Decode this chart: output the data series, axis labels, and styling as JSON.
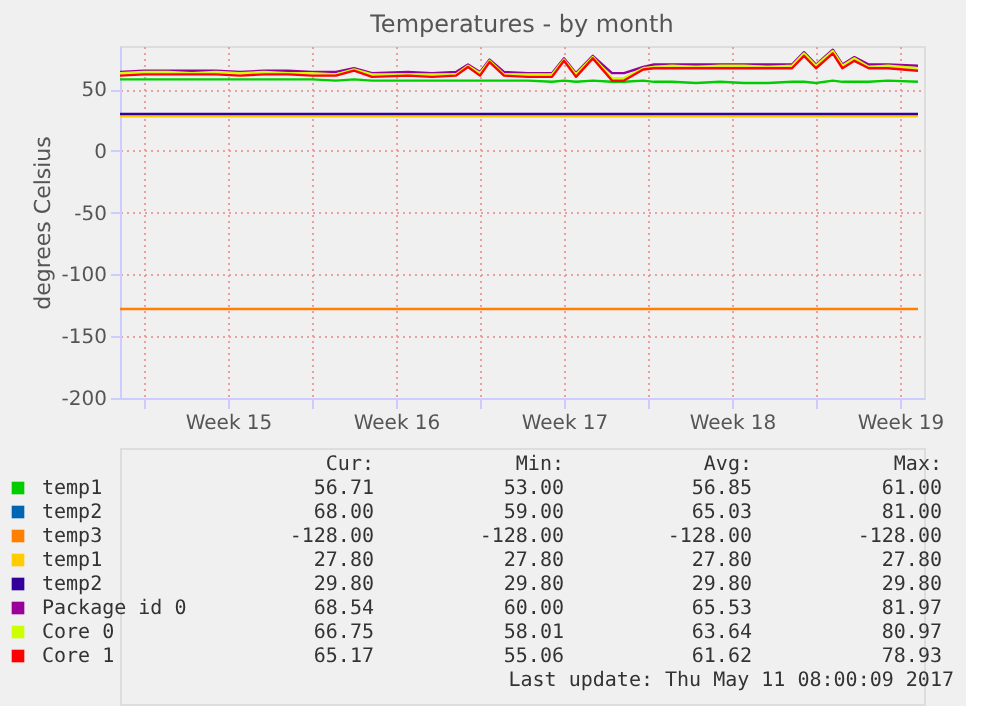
{
  "chart_data": {
    "type": "line",
    "title": "Temperatures - by month",
    "ylabel": "degrees Celsius",
    "x": [
      "2017-04-09T00:00",
      "2017-04-10T00:00",
      "2017-04-11T00:00",
      "2017-04-12T00:00",
      "2017-04-13T00:00",
      "2017-04-14T00:00",
      "2017-04-15T00:00",
      "2017-04-16T00:00",
      "2017-04-17T00:00",
      "2017-04-18T00:00",
      "2017-04-18T18:00",
      "2017-04-19T12:00",
      "2017-04-21T00:00",
      "2017-04-22T00:00",
      "2017-04-23T00:00",
      "2017-04-23T12:00",
      "2017-04-24T00:00",
      "2017-04-24T09:36",
      "2017-04-25T00:00",
      "2017-04-26T00:00",
      "2017-04-27T00:00",
      "2017-04-27T12:00",
      "2017-04-28T00:00",
      "2017-04-28T16:48",
      "2017-04-29T12:00",
      "2017-04-30T00:00",
      "2017-04-30T19:12",
      "2017-05-01T06:00",
      "2017-05-02T00:00",
      "2017-05-03T00:00",
      "2017-05-04T00:00",
      "2017-05-05T00:00",
      "2017-05-06T00:00",
      "2017-05-07T00:00",
      "2017-05-07T12:00",
      "2017-05-08T00:00",
      "2017-05-08T16:48",
      "2017-05-09T02:24",
      "2017-05-09T14:24",
      "2017-05-10T04:48",
      "2017-05-11T00:00",
      "2017-05-12T06:00"
    ],
    "series": [
      {
        "name": "temp1",
        "color": "#00cc00",
        "values": [
          58,
          58,
          58,
          58,
          58,
          58,
          58,
          58,
          58,
          57,
          58,
          57,
          57,
          57,
          57,
          57,
          57,
          57,
          57,
          57,
          56,
          57,
          56,
          57,
          56,
          56,
          57,
          56,
          56,
          55,
          56,
          55,
          55,
          56,
          56,
          55,
          57,
          56,
          56,
          56,
          57,
          56
        ]
      },
      {
        "name": "temp2",
        "color": "#0066b3",
        "values": [
          null,
          null,
          null,
          null,
          null,
          null,
          null,
          null,
          null,
          null,
          null,
          null,
          null,
          null,
          null,
          null,
          null,
          null,
          null,
          null,
          null,
          null,
          null,
          null,
          null,
          null,
          null,
          null,
          null,
          null,
          null,
          null,
          null,
          null,
          null,
          null,
          null,
          null,
          null,
          null,
          null,
          null
        ]
      },
      {
        "name": "temp3",
        "color": "#ff8000",
        "values": [
          -128,
          -128,
          -128,
          -128,
          -128,
          -128,
          -128,
          -128,
          -128,
          -128,
          -128,
          -128,
          -128,
          -128,
          -128,
          -128,
          -128,
          -128,
          -128,
          -128,
          -128,
          -128,
          -128,
          -128,
          -128,
          -128,
          -128,
          -128,
          -128,
          -128,
          -128,
          -128,
          -128,
          -128,
          -128,
          -128,
          -128,
          -128,
          -128,
          -128,
          -128,
          -128
        ]
      },
      {
        "name": "temp1",
        "color": "#ffcc00",
        "values": [
          28,
          28,
          28,
          28,
          28,
          28,
          28,
          28,
          28,
          28,
          28,
          28,
          28,
          28,
          28,
          28,
          28,
          28,
          28,
          28,
          28,
          28,
          28,
          28,
          28,
          28,
          28,
          28,
          28,
          28,
          28,
          28,
          28,
          28,
          28,
          28,
          28,
          28,
          28,
          28,
          28,
          28
        ]
      },
      {
        "name": "temp2",
        "color": "#330099",
        "values": [
          30,
          30,
          30,
          30,
          30,
          30,
          30,
          30,
          30,
          30,
          30,
          30,
          30,
          30,
          30,
          30,
          30,
          30,
          30,
          30,
          30,
          30,
          30,
          30,
          30,
          30,
          30,
          30,
          30,
          30,
          30,
          30,
          30,
          30,
          30,
          30,
          30,
          30,
          30,
          30,
          30,
          30
        ]
      },
      {
        "name": "Package id 0",
        "color": "#990099",
        "values": [
          64,
          65,
          65,
          65,
          65,
          64,
          65,
          65,
          64,
          64,
          67,
          63,
          64,
          63,
          64,
          70,
          64,
          74,
          64,
          63,
          63,
          75,
          63,
          77,
          63,
          63,
          68,
          70,
          70,
          70,
          70,
          70,
          70,
          70,
          80,
          70,
          82,
          70,
          76,
          70,
          70,
          69
        ]
      },
      {
        "name": "Core 0",
        "color": "#ccff00",
        "values": [
          63,
          64,
          64,
          63,
          64,
          63,
          64,
          63,
          63,
          62,
          66,
          62,
          62,
          62,
          62,
          69,
          63,
          73,
          62,
          62,
          62,
          74,
          62,
          76,
          59,
          59,
          67,
          68,
          69,
          68,
          69,
          69,
          68,
          69,
          79,
          69,
          81,
          69,
          75,
          68,
          69,
          67
        ]
      },
      {
        "name": "Core 1",
        "color": "#ff0000",
        "values": [
          61,
          62,
          62,
          62,
          62,
          61,
          62,
          62,
          61,
          61,
          65,
          60,
          61,
          60,
          61,
          68,
          61,
          72,
          61,
          60,
          60,
          73,
          60,
          75,
          57,
          57,
          66,
          67,
          67,
          67,
          67,
          67,
          67,
          67,
          77,
          67,
          79,
          67,
          73,
          67,
          67,
          65
        ]
      }
    ],
    "xlim": [
      "2017-04-09T00:00",
      "2017-05-12T12:00"
    ],
    "xticks": [
      {
        "value": "2017-04-10T00:00",
        "label": null
      },
      {
        "value": "2017-04-13T12:00",
        "label": "Week 15"
      },
      {
        "value": "2017-04-17T00:00",
        "label": null
      },
      {
        "value": "2017-04-20T12:00",
        "label": "Week 16"
      },
      {
        "value": "2017-04-24T00:00",
        "label": null
      },
      {
        "value": "2017-04-27T12:00",
        "label": "Week 17"
      },
      {
        "value": "2017-05-01T00:00",
        "label": null
      },
      {
        "value": "2017-05-04T12:00",
        "label": "Week 18"
      },
      {
        "value": "2017-05-08T00:00",
        "label": null
      },
      {
        "value": "2017-05-11T12:00",
        "label": "Week 19"
      }
    ],
    "ylim": [
      -200,
      85
    ],
    "yticks": [
      -200,
      -150,
      -100,
      -50,
      0,
      50
    ],
    "grid": true,
    "legend": "bottom",
    "line_style": "solid",
    "marker": "none",
    "annotations": [
      "Cur:",
      "Min:",
      "Avg:",
      "Max:",
      "56.71",
      "53.00",
      "56.85",
      "61.00",
      "68.00",
      "59.00",
      "65.03",
      "81.00",
      "-128.00",
      "-128.00",
      "-128.00",
      "-128.00",
      "27.80",
      "27.80",
      "27.80",
      "27.80",
      "29.80",
      "29.80",
      "29.80",
      "29.80",
      "68.54",
      "60.00",
      "65.53",
      "81.97",
      "66.75",
      "58.01",
      "63.64",
      "80.97",
      "65.17",
      "55.06",
      "61.62",
      "78.93",
      "Last update: Thu May 11 08:00:09 2017"
    ]
  }
}
